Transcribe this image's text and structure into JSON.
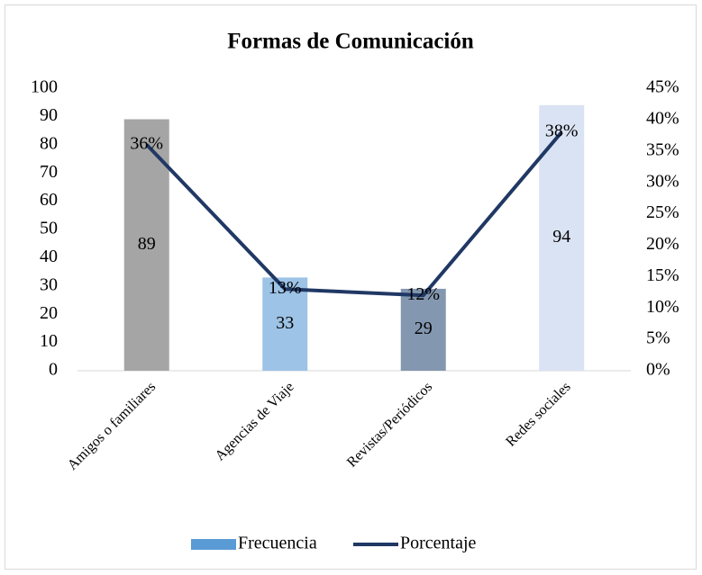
{
  "chart_data": {
    "type": "bar",
    "title": "Formas de Comunicación",
    "categories": [
      "Amigos o familiares",
      "Agencias de Viaje",
      "Revistas/Periódicos",
      "Redes sociales"
    ],
    "series": [
      {
        "name": "Frecuencia",
        "color": "#5b9bd5",
        "colors": [
          "#a5a5a5",
          "#9dc3e6",
          "#8497b0",
          "#dae3f3"
        ],
        "values": [
          89,
          33,
          29,
          94
        ]
      },
      {
        "name": "Porcentaje",
        "color": "#203864",
        "axis": "y2",
        "type": "line",
        "values": [
          36,
          13,
          12,
          38
        ],
        "value_labels": [
          "36%",
          "13%",
          "12%",
          "38%"
        ]
      }
    ],
    "ylim": [
      0,
      100
    ],
    "yticks": [
      0,
      10,
      20,
      30,
      40,
      50,
      60,
      70,
      80,
      90,
      100
    ],
    "y2lim": [
      0,
      45
    ],
    "y2ticks": [
      {
        "value": 0,
        "label": "0%"
      },
      {
        "value": 5,
        "label": "5%"
      },
      {
        "value": 10,
        "label": "10%"
      },
      {
        "value": 15,
        "label": "15%"
      },
      {
        "value": 20,
        "label": "20%"
      },
      {
        "value": 25,
        "label": "25%"
      },
      {
        "value": 30,
        "label": "30%"
      },
      {
        "value": 35,
        "label": "35%"
      },
      {
        "value": 40,
        "label": "40%"
      },
      {
        "value": 45,
        "label": "45%"
      }
    ],
    "legend": "bottom"
  }
}
